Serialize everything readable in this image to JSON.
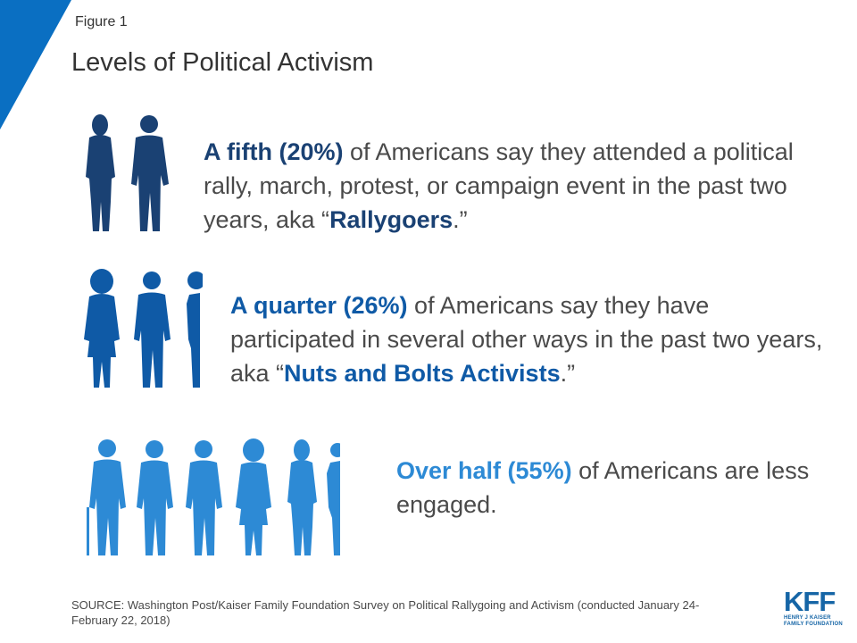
{
  "colors": {
    "accent": "#0a6fc2",
    "dark_blue": "#1a4173",
    "mid_blue": "#0f5aa6",
    "light_blue": "#2d8ad5"
  },
  "header": {
    "figure_label": "Figure 1",
    "title": "Levels of Political Activism"
  },
  "statements": [
    {
      "highlight": "A fifth (20%)",
      "text_before": " of Americans say they attended a political rally, march, protest, or campaign event in the past two years, aka “",
      "term": "Rallygoers",
      "text_after": ".”",
      "people_count": 2,
      "color": "#1a4173"
    },
    {
      "highlight": "A quarter (26%)",
      "text_before": " of Americans say they have participated in several other ways in the past two years, aka “",
      "term": "Nuts and Bolts Activists",
      "text_after": ".”",
      "people_count": 2.5,
      "color": "#0f5aa6"
    },
    {
      "highlight": "Over half (55%)",
      "text_before": " of Americans are less engaged.",
      "term": "",
      "text_after": "",
      "people_count": 5.5,
      "color": "#2d8ad5"
    }
  ],
  "source": "SOURCE: Washington Post/Kaiser Family Foundation Survey on Political Rallygoing and Activism (conducted January 24-February 22, 2018)",
  "logo": {
    "mark": "KFF",
    "line1": "HENRY J KAISER",
    "line2": "FAMILY FOUNDATION"
  }
}
